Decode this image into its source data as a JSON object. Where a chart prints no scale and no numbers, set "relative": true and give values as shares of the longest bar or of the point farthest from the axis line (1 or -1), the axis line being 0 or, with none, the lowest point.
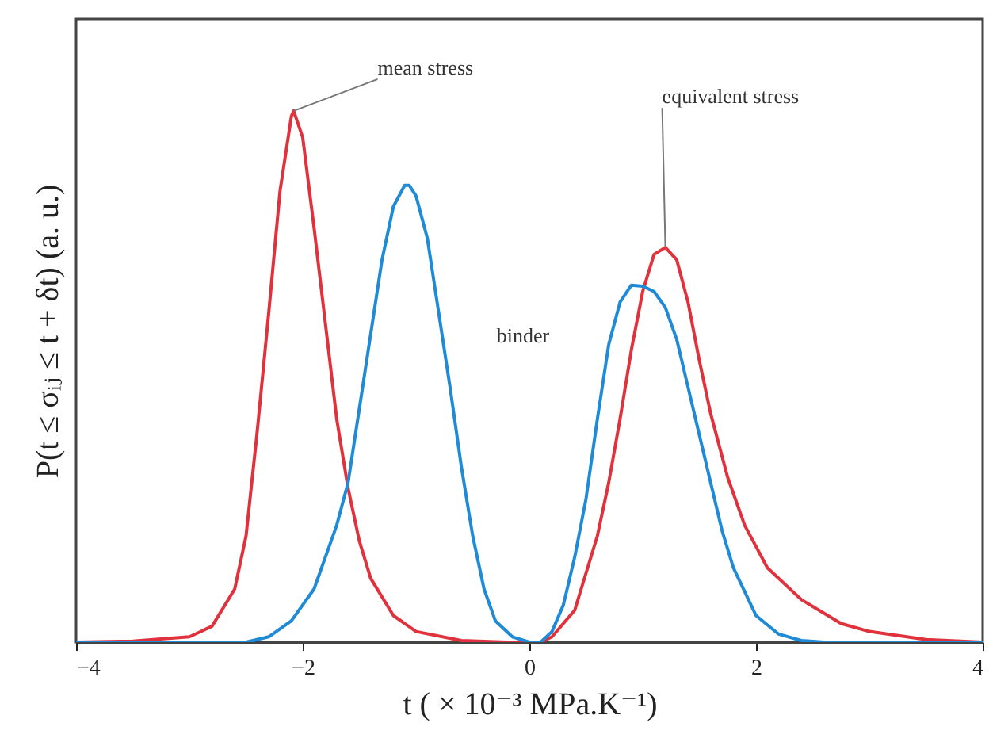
{
  "chart_data": {
    "type": "line",
    "relative": true,
    "xlabel": "t ( × 10⁻³ MPa.K⁻¹)",
    "ylabel": "P(t ≤ σᵢⱼ ≤ t + δt) (a. u.)",
    "xlim": [
      -4,
      4
    ],
    "xticks": [
      {
        "value": -4,
        "label": "−4"
      },
      {
        "value": -2,
        "label": "−2"
      },
      0,
      2,
      4
    ],
    "grid": false,
    "series": [
      {
        "color": "#e0323c",
        "x": [
          -4,
          -3.5,
          -3,
          -2.8,
          -2.6,
          -2.5,
          -2.4,
          -2.3,
          -2.2,
          -2.1,
          -2.08,
          -2,
          -1.9,
          -1.8,
          -1.7,
          -1.6,
          -1.5,
          -1.4,
          -1.2,
          -1,
          -0.6,
          -0.2,
          0.1,
          0.2,
          0.4,
          0.6,
          0.7,
          0.8,
          0.9,
          1,
          1.1,
          1.2,
          1.3,
          1.4,
          1.5,
          1.6,
          1.75,
          1.9,
          2.1,
          2.4,
          2.75,
          3,
          3.5,
          4
        ],
        "values": [
          0,
          0.002,
          0.01,
          0.03,
          0.1,
          0.2,
          0.4,
          0.62,
          0.85,
          0.99,
          1,
          0.95,
          0.78,
          0.6,
          0.42,
          0.29,
          0.19,
          0.12,
          0.05,
          0.02,
          0.003,
          0,
          0,
          0.01,
          0.06,
          0.2,
          0.3,
          0.42,
          0.55,
          0.66,
          0.73,
          0.743,
          0.72,
          0.64,
          0.53,
          0.43,
          0.31,
          0.22,
          0.14,
          0.08,
          0.035,
          0.02,
          0.005,
          0
        ]
      },
      {
        "color": "#1f8ad6",
        "x": [
          -4,
          -2.5,
          -2.3,
          -2.1,
          -1.9,
          -1.7,
          -1.6,
          -1.5,
          -1.4,
          -1.3,
          -1.2,
          -1.1,
          -1.06,
          -1,
          -0.9,
          -0.8,
          -0.7,
          -0.6,
          -0.5,
          -0.4,
          -0.3,
          -0.15,
          0,
          0.1,
          0.2,
          0.3,
          0.4,
          0.5,
          0.6,
          0.7,
          0.8,
          0.9,
          1,
          1.1,
          1.2,
          1.3,
          1.4,
          1.5,
          1.6,
          1.7,
          1.8,
          2,
          2.2,
          2.4,
          2.6,
          4
        ],
        "values": [
          0,
          0,
          0.01,
          0.04,
          0.1,
          0.22,
          0.3,
          0.44,
          0.58,
          0.72,
          0.82,
          0.86,
          0.86,
          0.84,
          0.76,
          0.62,
          0.48,
          0.33,
          0.2,
          0.1,
          0.04,
          0.01,
          0,
          0,
          0.02,
          0.07,
          0.16,
          0.27,
          0.42,
          0.56,
          0.64,
          0.672,
          0.67,
          0.66,
          0.63,
          0.57,
          0.48,
          0.39,
          0.3,
          0.21,
          0.14,
          0.05,
          0.015,
          0.003,
          0,
          0
        ]
      }
    ],
    "annotations": [
      {
        "text": "mean stress",
        "x": -2.08,
        "y": 1
      },
      {
        "text": "equivalent stress",
        "x": 1.2,
        "y": 0.743
      },
      "binder"
    ]
  }
}
